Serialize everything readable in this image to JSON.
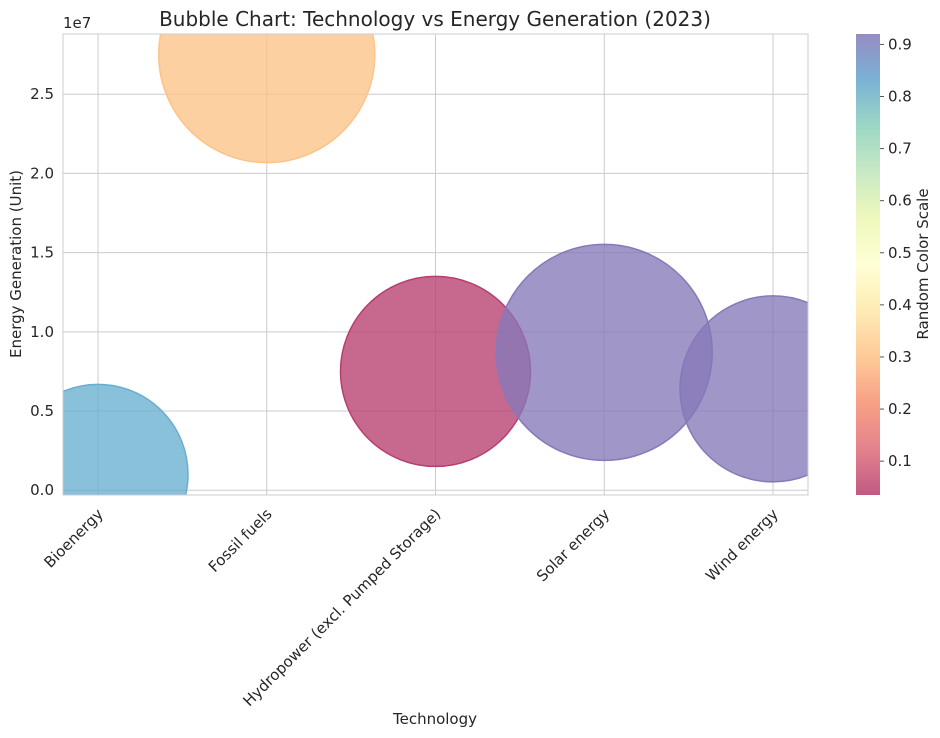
{
  "chart_data": {
    "type": "bubble",
    "title": "Bubble Chart: Technology vs Energy Generation (2023)",
    "xlabel": "Technology",
    "ylabel": "Energy Generation (Unit)",
    "y_offset_label": "1e7",
    "categories": [
      "Bioenergy",
      "Fossil fuels",
      "Hydropower (excl. Pumped Storage)",
      "Solar energy",
      "Wind energy"
    ],
    "y_values": [
      1000000,
      27500000,
      7500000,
      8700000,
      6400000
    ],
    "color_values": [
      0.83,
      0.3,
      0.07,
      0.93,
      0.93
    ],
    "bubble_colors": [
      "#68aed0",
      "#fdc386",
      "#b73e6f",
      "#8779b8",
      "#8779b8"
    ],
    "ylim": [
      -300000,
      28800000
    ],
    "yticks": [
      0,
      5000000,
      10000000,
      15000000,
      20000000,
      25000000
    ],
    "ytick_labels": [
      "0.0",
      "0.5",
      "1.0",
      "1.5",
      "2.0",
      "2.5"
    ],
    "grid": true,
    "colorbar": {
      "label": "Random Color Scale",
      "range": [
        0.035,
        0.92
      ],
      "ticks": [
        0.1,
        0.2,
        0.3,
        0.4,
        0.5,
        0.6,
        0.7,
        0.8,
        0.9
      ],
      "tick_labels": [
        "0.1",
        "0.2",
        "0.3",
        "0.4",
        "0.5",
        "0.6",
        "0.7",
        "0.8",
        "0.9"
      ],
      "colormap": [
        "#9e0142",
        "#d53e4f",
        "#f46d43",
        "#fdae61",
        "#fee08b",
        "#ffffbf",
        "#e6f598",
        "#abdda4",
        "#66c2a5",
        "#3288bd",
        "#5e4fa2"
      ]
    }
  }
}
